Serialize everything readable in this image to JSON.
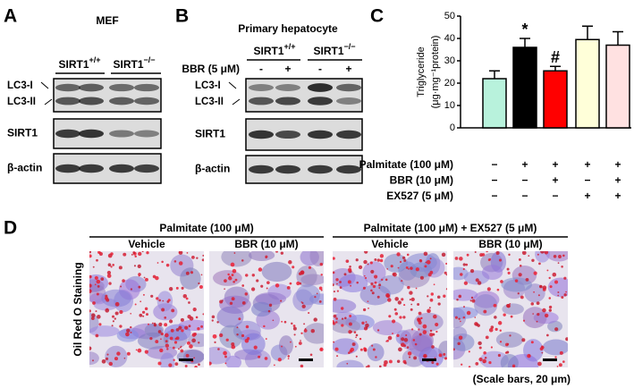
{
  "panels": {
    "a": {
      "label": "A",
      "title": "MEF",
      "groups": [
        {
          "gene": "SIRT1",
          "genotype": "+/+"
        },
        {
          "gene": "SIRT1",
          "genotype": "−/−"
        }
      ],
      "rows": [
        "LC3-I",
        "LC3-II",
        "SIRT1",
        "β-actin"
      ]
    },
    "b": {
      "label": "B",
      "title": "Primary hepatocyte",
      "groups": [
        {
          "gene": "SIRT1",
          "genotype": "+/+"
        },
        {
          "gene": "SIRT1",
          "genotype": "−/−"
        }
      ],
      "treatment": "BBR (5 μM)",
      "signs": [
        "-",
        "+",
        "-",
        "+"
      ],
      "rows": [
        "LC3-I",
        "LC3-II",
        "SIRT1",
        "β-actin"
      ]
    },
    "c": {
      "label": "C"
    },
    "d": {
      "label": "D",
      "groups": [
        {
          "title": "Palmitate (100 μM)",
          "columns": [
            "Vehicle",
            "BBR (10 μM)"
          ]
        },
        {
          "title": "Palmitate (100 μM) + EX527 (5 μM)",
          "columns": [
            "Vehicle",
            "BBR (10 μM)"
          ]
        }
      ],
      "side_label": "Oil Red O Staining",
      "note": "(Scale bars, 20 μm)"
    }
  },
  "chart_data": {
    "type": "bar",
    "y_label": [
      "Triglyceride",
      "(μg·mg⁻¹protein)"
    ],
    "values": [
      22,
      36,
      25.5,
      39.5,
      37
    ],
    "errors": [
      3.5,
      4,
      2,
      6,
      6
    ],
    "colors": [
      "#b8f2dc",
      "#000000",
      "#ff0000",
      "#ffffd9",
      "#ffe1e1"
    ],
    "bar_labels": [
      null,
      "*",
      "#",
      null,
      null
    ],
    "ylim": [
      0,
      50
    ],
    "yticks": [
      0,
      10,
      20,
      30,
      40,
      50
    ],
    "treatments": [
      {
        "name": "Palmitate (100 μM)",
        "signs": [
          "−",
          "+",
          "+",
          "+",
          "+"
        ]
      },
      {
        "name": "BBR (10 μM)",
        "signs": [
          "−",
          "−",
          "+",
          "−",
          "+"
        ]
      },
      {
        "name": "EX527 (5 μM)",
        "signs": [
          "−",
          "−",
          "−",
          "+",
          "+"
        ]
      }
    ]
  }
}
